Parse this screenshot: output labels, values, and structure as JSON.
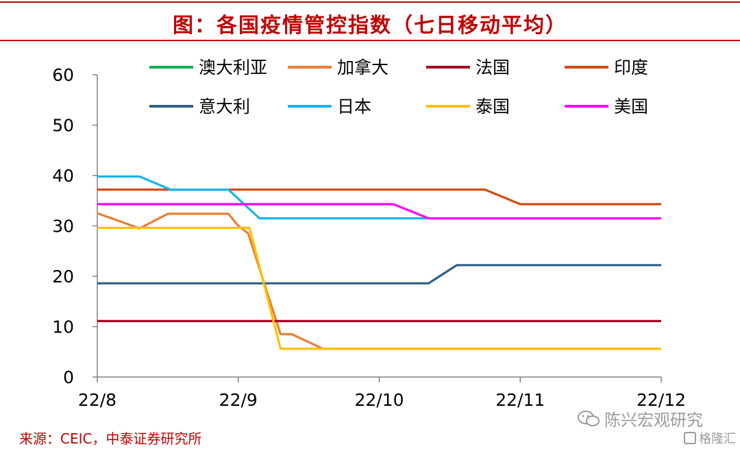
{
  "header": {
    "title": "图：各国疫情管控指数（七日移动平均）"
  },
  "footer": {
    "source": "来源：CEIC，中泰证券研究所"
  },
  "watermark": {
    "text": "陈兴宏观研究",
    "corner_text": "格隆汇",
    "icon": "wechat-icon"
  },
  "chart_data": {
    "type": "line",
    "title": "图：各国疫情管控指数（七日移动平均）",
    "xlabel": "",
    "ylabel": "",
    "ylim": [
      0,
      60
    ],
    "yticks": [
      0,
      10,
      20,
      30,
      40,
      50,
      60
    ],
    "xlim": [
      0,
      4
    ],
    "xtick_positions": [
      0,
      1,
      2,
      3,
      4
    ],
    "xtick_labels": [
      "22/8",
      "22/9",
      "22/10",
      "22/11",
      "22/12"
    ],
    "grid": false,
    "legend_position": "top",
    "series": [
      {
        "name": "澳大利亚",
        "color": "#00b050",
        "x": [
          0,
          4
        ],
        "y": [
          null,
          null
        ]
      },
      {
        "name": "加拿大",
        "color": "#ed7d31",
        "x": [
          0,
          0.2,
          0.3,
          0.5,
          0.93,
          1.0,
          1.07,
          1.3,
          1.38,
          1.6,
          4.0
        ],
        "y": [
          32.5,
          30.5,
          29.5,
          32.4,
          32.4,
          30.0,
          28.5,
          8.5,
          8.5,
          5.6,
          5.6
        ]
      },
      {
        "name": "法国",
        "color": "#a50021",
        "x": [
          0,
          4
        ],
        "y": [
          11.1,
          11.1
        ]
      },
      {
        "name": "印度",
        "color": "#d44a12",
        "x": [
          0,
          2.75,
          3.0,
          4.0
        ],
        "y": [
          37.2,
          37.2,
          34.3,
          34.3
        ]
      },
      {
        "name": "意大利",
        "color": "#2e5f8a",
        "x": [
          0,
          2.35,
          2.55,
          4.0
        ],
        "y": [
          18.6,
          18.6,
          22.2,
          22.2
        ]
      },
      {
        "name": "日本",
        "color": "#19b4e8",
        "x": [
          0,
          0.3,
          0.52,
          0.93,
          1.15,
          2.35,
          4.0
        ],
        "y": [
          39.8,
          39.8,
          37.2,
          37.2,
          31.5,
          31.5,
          31.5
        ]
      },
      {
        "name": "泰国",
        "color": "#ffc000",
        "x": [
          0,
          1.08,
          1.3,
          4.0
        ],
        "y": [
          29.6,
          29.6,
          5.6,
          5.6
        ]
      },
      {
        "name": "美国",
        "color": "#ff00ff",
        "x": [
          0,
          2.1,
          2.35,
          4.0
        ],
        "y": [
          34.3,
          34.3,
          31.5,
          31.5
        ]
      }
    ]
  }
}
